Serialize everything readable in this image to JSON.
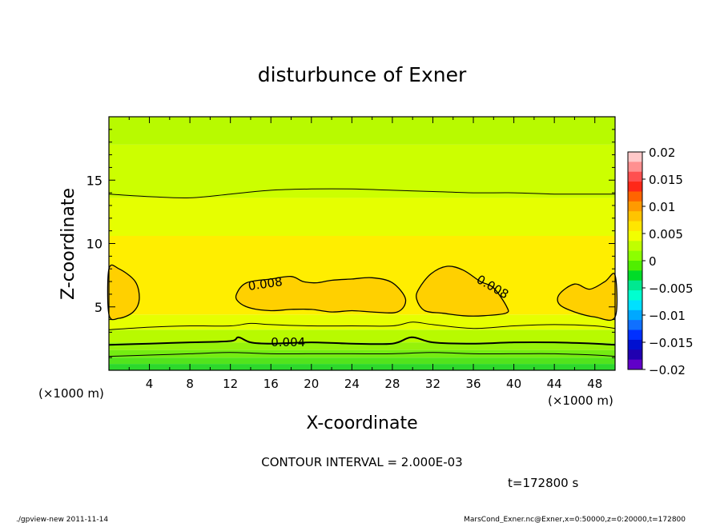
{
  "chart_data": {
    "type": "heatmap",
    "title": "disturbunce of Exner",
    "xlabel": "X-coordinate",
    "ylabel": "Z-coordinate",
    "x_unit_left": "(×1000 m)",
    "x_unit_right": "(×1000 m)",
    "xlim": [
      0,
      50
    ],
    "ylim": [
      0,
      20
    ],
    "x_ticks": [
      4,
      8,
      12,
      16,
      20,
      24,
      28,
      32,
      36,
      40,
      44,
      48
    ],
    "y_ticks": [
      5,
      10,
      15
    ],
    "contour_labels": [
      {
        "text": "0.008",
        "x": 15.5,
        "z": 6.5
      },
      {
        "text": "0.008",
        "x": 37.7,
        "z": 6.3
      },
      {
        "text": "0.004",
        "x": 17.7,
        "z": 1.9
      }
    ],
    "contour_interval_text": "CONTOUR INTERVAL = 2.000E-03",
    "time_text": "t=172800 s",
    "colorbar": {
      "ticks": [
        "0.02",
        "0.015",
        "0.01",
        "0.005",
        "0",
        "−0.005",
        "−0.01",
        "−0.015",
        "−0.02"
      ],
      "range": [
        -0.02,
        0.02
      ],
      "colors_top_to_bottom": [
        "#ffc8c8",
        "#ff9090",
        "#ff5050",
        "#ff2818",
        "#ff6400",
        "#ff9a00",
        "#ffc400",
        "#ffe600",
        "#f2ff00",
        "#c0ff00",
        "#8cff00",
        "#50ee00",
        "#00dc28",
        "#00e890",
        "#00ffd0",
        "#00e0ff",
        "#00a8ff",
        "#1070ff",
        "#0030ff",
        "#0010d0",
        "#2000b0",
        "#6000c8"
      ]
    },
    "field_bands_by_z": [
      {
        "z_from": 0.0,
        "z_to": 0.5,
        "value": 0.003,
        "color": "#2cd82c"
      },
      {
        "z_from": 0.5,
        "z_to": 1.0,
        "value": 0.0035,
        "color": "#52e41c"
      },
      {
        "z_from": 1.0,
        "z_to": 1.6,
        "value": 0.004,
        "color": "#74ec12"
      },
      {
        "z_from": 1.6,
        "z_to": 2.2,
        "value": 0.0045,
        "color": "#96f20a"
      },
      {
        "z_from": 2.2,
        "z_to": 3.2,
        "value": 0.005,
        "color": "#b8fa00"
      },
      {
        "z_from": 3.2,
        "z_to": 4.4,
        "value": 0.006,
        "color": "#e6ff00"
      },
      {
        "z_from": 4.4,
        "z_to": 10.6,
        "value": 0.007,
        "color": "#ffee00"
      },
      {
        "z_from": 10.6,
        "z_to": 13.6,
        "value": 0.006,
        "color": "#e6ff00"
      },
      {
        "z_from": 13.6,
        "z_to": 17.8,
        "value": 0.005,
        "color": "#ccff00"
      },
      {
        "z_from": 17.8,
        "z_to": 20.0,
        "value": 0.0045,
        "color": "#b8fa00"
      }
    ],
    "blobs_0008": [
      {
        "x": [
          0,
          1.0,
          2.6,
          3.0,
          2.4,
          1.0,
          0
        ],
        "z": [
          8.0,
          8.0,
          7.0,
          5.6,
          4.6,
          4.1,
          4.4
        ]
      },
      {
        "x": [
          12.6,
          13.6,
          16,
          18,
          19.2,
          20.5,
          22,
          24,
          26,
          28,
          29.3,
          28.5,
          26,
          24,
          22,
          20,
          18,
          16,
          14,
          12.8
        ],
        "z": [
          6.0,
          6.9,
          7.2,
          7.4,
          7.0,
          6.9,
          7.1,
          7.2,
          7.3,
          6.9,
          5.6,
          4.6,
          4.6,
          4.7,
          4.6,
          4.8,
          4.8,
          4.7,
          4.9,
          5.4
        ]
      },
      {
        "x": [
          30.6,
          31.8,
          33.4,
          35,
          36.7,
          38,
          39.3,
          39.2,
          37,
          35,
          33,
          31.2,
          30.4
        ],
        "z": [
          6.4,
          7.6,
          8.2,
          7.9,
          7.0,
          6.5,
          5.0,
          4.5,
          4.3,
          4.3,
          4.5,
          4.7,
          5.6
        ]
      },
      {
        "x": [
          44.5,
          46,
          47.5,
          49,
          50,
          50,
          48,
          46,
          44.5
        ],
        "z": [
          6.0,
          6.8,
          6.4,
          7.0,
          7.5,
          4.2,
          4.2,
          4.6,
          5.2
        ]
      }
    ],
    "contour_lines": [
      {
        "kind": "thin",
        "x": [
          0,
          4,
          8,
          12,
          16,
          20,
          24,
          28,
          32,
          36,
          40,
          44,
          48,
          50
        ],
        "z": [
          13.9,
          13.7,
          13.6,
          13.9,
          14.2,
          14.3,
          14.3,
          14.2,
          14.1,
          14.0,
          14.0,
          13.9,
          13.9,
          13.9
        ]
      },
      {
        "kind": "thin",
        "x": [
          0,
          4,
          8,
          12,
          14,
          16,
          20,
          24,
          28,
          30,
          32,
          36,
          40,
          44,
          48,
          50
        ],
        "z": [
          3.2,
          3.4,
          3.5,
          3.5,
          3.7,
          3.6,
          3.5,
          3.5,
          3.5,
          3.8,
          3.6,
          3.3,
          3.5,
          3.6,
          3.5,
          3.3
        ]
      },
      {
        "kind": "thick",
        "x": [
          0,
          4,
          8,
          12,
          12.8,
          14,
          16,
          20,
          24,
          28,
          29.9,
          32,
          36,
          40,
          44,
          48,
          50
        ],
        "z": [
          2.0,
          2.1,
          2.2,
          2.3,
          2.6,
          2.2,
          2.1,
          2.2,
          2.1,
          2.1,
          2.6,
          2.2,
          2.1,
          2.2,
          2.2,
          2.1,
          2.0
        ]
      },
      {
        "kind": "thin",
        "x": [
          0,
          4,
          8,
          12,
          16,
          20,
          24,
          28,
          32,
          36,
          40,
          44,
          48,
          50
        ],
        "z": [
          1.1,
          1.2,
          1.3,
          1.4,
          1.3,
          1.3,
          1.3,
          1.3,
          1.4,
          1.3,
          1.3,
          1.3,
          1.2,
          1.1
        ]
      }
    ],
    "grid": false,
    "legend": "colorbar-right"
  },
  "footer": {
    "left": "./gpview-new   2011-11-14",
    "right": "MarsCond_Exner.nc@Exner,x=0:50000,z=0:20000,t=172800"
  }
}
